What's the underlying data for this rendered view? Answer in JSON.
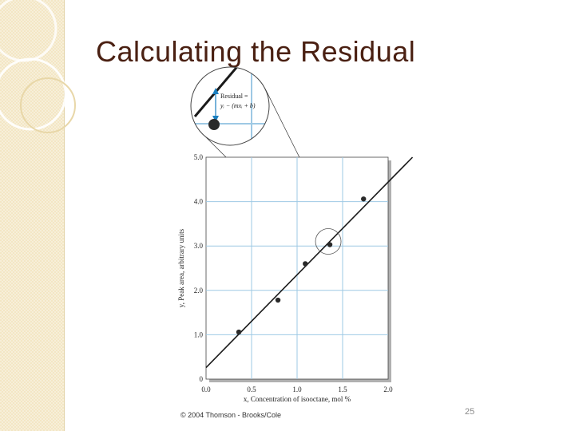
{
  "slide": {
    "title": "Calculating the Residual",
    "copyright": "© 2004 Thomson - Brooks/Cole",
    "page_number": "25"
  },
  "colors": {
    "title": "#4a2012",
    "grid": "#9ec9e4",
    "points": "#2a2a2a",
    "line": "#1a1a1a",
    "side_strip": "#f3e6c4"
  },
  "chart_data": {
    "type": "scatter",
    "xlabel": "x, Concentration of isooctane, mol %",
    "ylabel": "y, Peak area, arbitrary units",
    "xlim": [
      0,
      2.0
    ],
    "ylim": [
      0,
      5.0
    ],
    "x_ticks": [
      "0.0",
      "0.5",
      "1.0",
      "1.5",
      "2.0"
    ],
    "y_ticks": [
      "0",
      "1.0",
      "2.0",
      "3.0",
      "4.0",
      "5.0"
    ],
    "grid": true,
    "series": [
      {
        "points": [
          {
            "x": 0.36,
            "y": 1.06
          },
          {
            "x": 0.79,
            "y": 1.78
          },
          {
            "x": 1.09,
            "y": 2.6
          },
          {
            "x": 1.36,
            "y": 3.03
          },
          {
            "x": 1.73,
            "y": 4.06
          }
        ]
      }
    ],
    "fit_line": {
      "slope": 2.09,
      "intercept": 0.26
    },
    "inset": {
      "label_line1": "Residual =",
      "label_line2": "yᵢ − (mxᵢ + b)"
    }
  }
}
